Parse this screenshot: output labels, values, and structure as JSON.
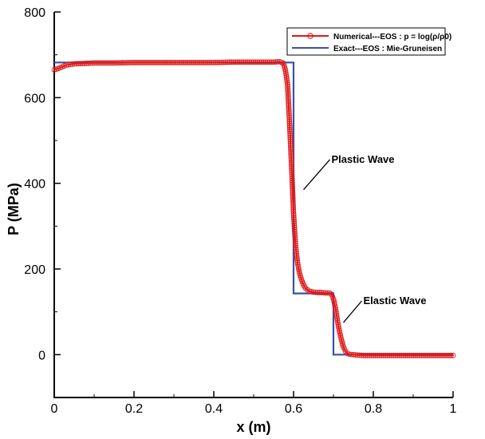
{
  "chart_data": {
    "type": "line",
    "title": "",
    "xlabel": "x (m)",
    "ylabel": "P (MPa)",
    "xlim": [
      0,
      1
    ],
    "ylim": [
      -100,
      800
    ],
    "x_ticks": [
      "0",
      "0.2",
      "0.4",
      "0.6",
      "0.8",
      "1"
    ],
    "x_tick_values": [
      0,
      0.2,
      0.4,
      0.6,
      0.8,
      1
    ],
    "y_ticks": [
      "0",
      "200",
      "400",
      "600",
      "800"
    ],
    "y_tick_values": [
      0,
      200,
      400,
      600,
      800
    ],
    "grid": false,
    "legend_position": "top-right",
    "series": [
      {
        "name": "Numerical---EOS : p = log(ρ/ρ0)",
        "color": "#e01818",
        "marker": "open-circle",
        "x": [
          0.0,
          0.01,
          0.02,
          0.03,
          0.05,
          0.08,
          0.1,
          0.15,
          0.2,
          0.25,
          0.3,
          0.35,
          0.4,
          0.45,
          0.5,
          0.55,
          0.565,
          0.575,
          0.58,
          0.585,
          0.59,
          0.595,
          0.6,
          0.605,
          0.61,
          0.615,
          0.62,
          0.625,
          0.63,
          0.64,
          0.65,
          0.66,
          0.67,
          0.68,
          0.69,
          0.695,
          0.7,
          0.705,
          0.71,
          0.715,
          0.72,
          0.725,
          0.73,
          0.735,
          0.74,
          0.75,
          0.76,
          0.78,
          0.8,
          0.85,
          0.9,
          0.95,
          1.0
        ],
        "y": [
          665,
          668,
          672,
          676,
          679,
          680,
          681,
          681,
          682,
          682,
          682,
          682,
          682,
          683,
          683,
          683,
          684,
          680,
          662,
          630,
          540,
          440,
          330,
          255,
          215,
          190,
          175,
          163,
          155,
          148,
          146,
          145,
          145,
          144,
          144,
          141,
          130,
          110,
          80,
          55,
          35,
          18,
          8,
          3,
          1,
          0,
          -1,
          -2,
          -2,
          -2,
          -2,
          -2,
          -2
        ]
      },
      {
        "name": "Exact---EOS : Mie-Gruneisen",
        "color": "#3a50a8",
        "x": [
          0,
          0.6,
          0.6,
          0.7,
          0.7,
          1
        ],
        "y": [
          682,
          682,
          143,
          143,
          0,
          0
        ]
      }
    ],
    "annotations": [
      {
        "text": "Plastic Wave",
        "x": 0.695,
        "y": 448,
        "arrow_to": [
          0.625,
          385
        ]
      },
      {
        "text": "Elastic Wave",
        "x": 0.775,
        "y": 118,
        "arrow_to": [
          0.725,
          75
        ]
      }
    ]
  }
}
